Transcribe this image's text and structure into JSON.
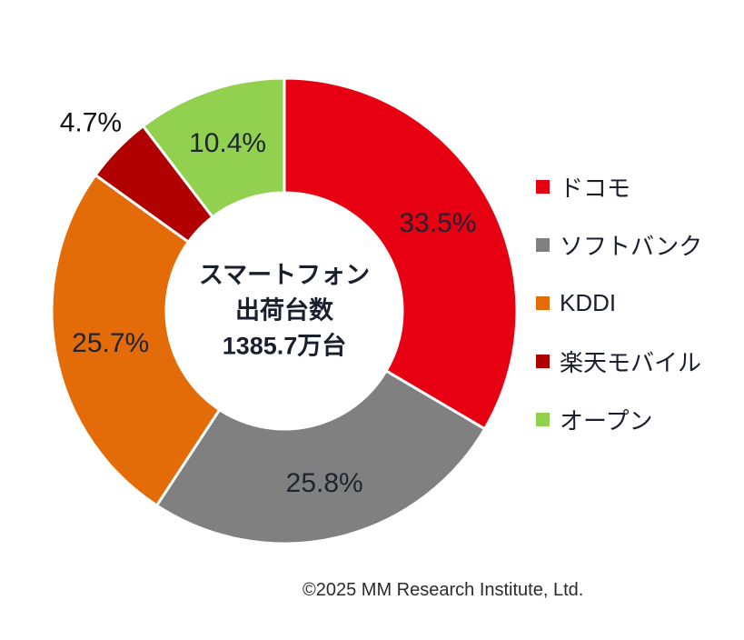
{
  "chart_data": {
    "type": "pie",
    "donut": true,
    "direction": "clockwise",
    "start_angle_deg": 0,
    "legend_position": "right",
    "value_suffix": "%",
    "label_color": "#1f2430",
    "outside_label_color": "#111111",
    "center_label": {
      "lines": [
        "スマートフォン",
        "出荷台数",
        "1385.7万台"
      ]
    },
    "slices": [
      {
        "name": "docomo",
        "label": "ドコモ",
        "value": 33.5,
        "color": "#e60012",
        "label_outside": false
      },
      {
        "name": "softbank",
        "label": "ソフトバンク",
        "value": 25.8,
        "color": "#808080",
        "label_outside": false
      },
      {
        "name": "kddi",
        "label": "KDDI",
        "value": 25.7,
        "color": "#e36c09",
        "label_outside": false
      },
      {
        "name": "rakuten",
        "label": "楽天モバイル",
        "value": 4.7,
        "color": "#b00000",
        "label_outside": true
      },
      {
        "name": "open",
        "label": "オープン",
        "value": 10.4,
        "color": "#92d050",
        "label_outside": false
      }
    ]
  },
  "footer": {
    "copyright": "©2025 MM Research Institute, Ltd."
  }
}
